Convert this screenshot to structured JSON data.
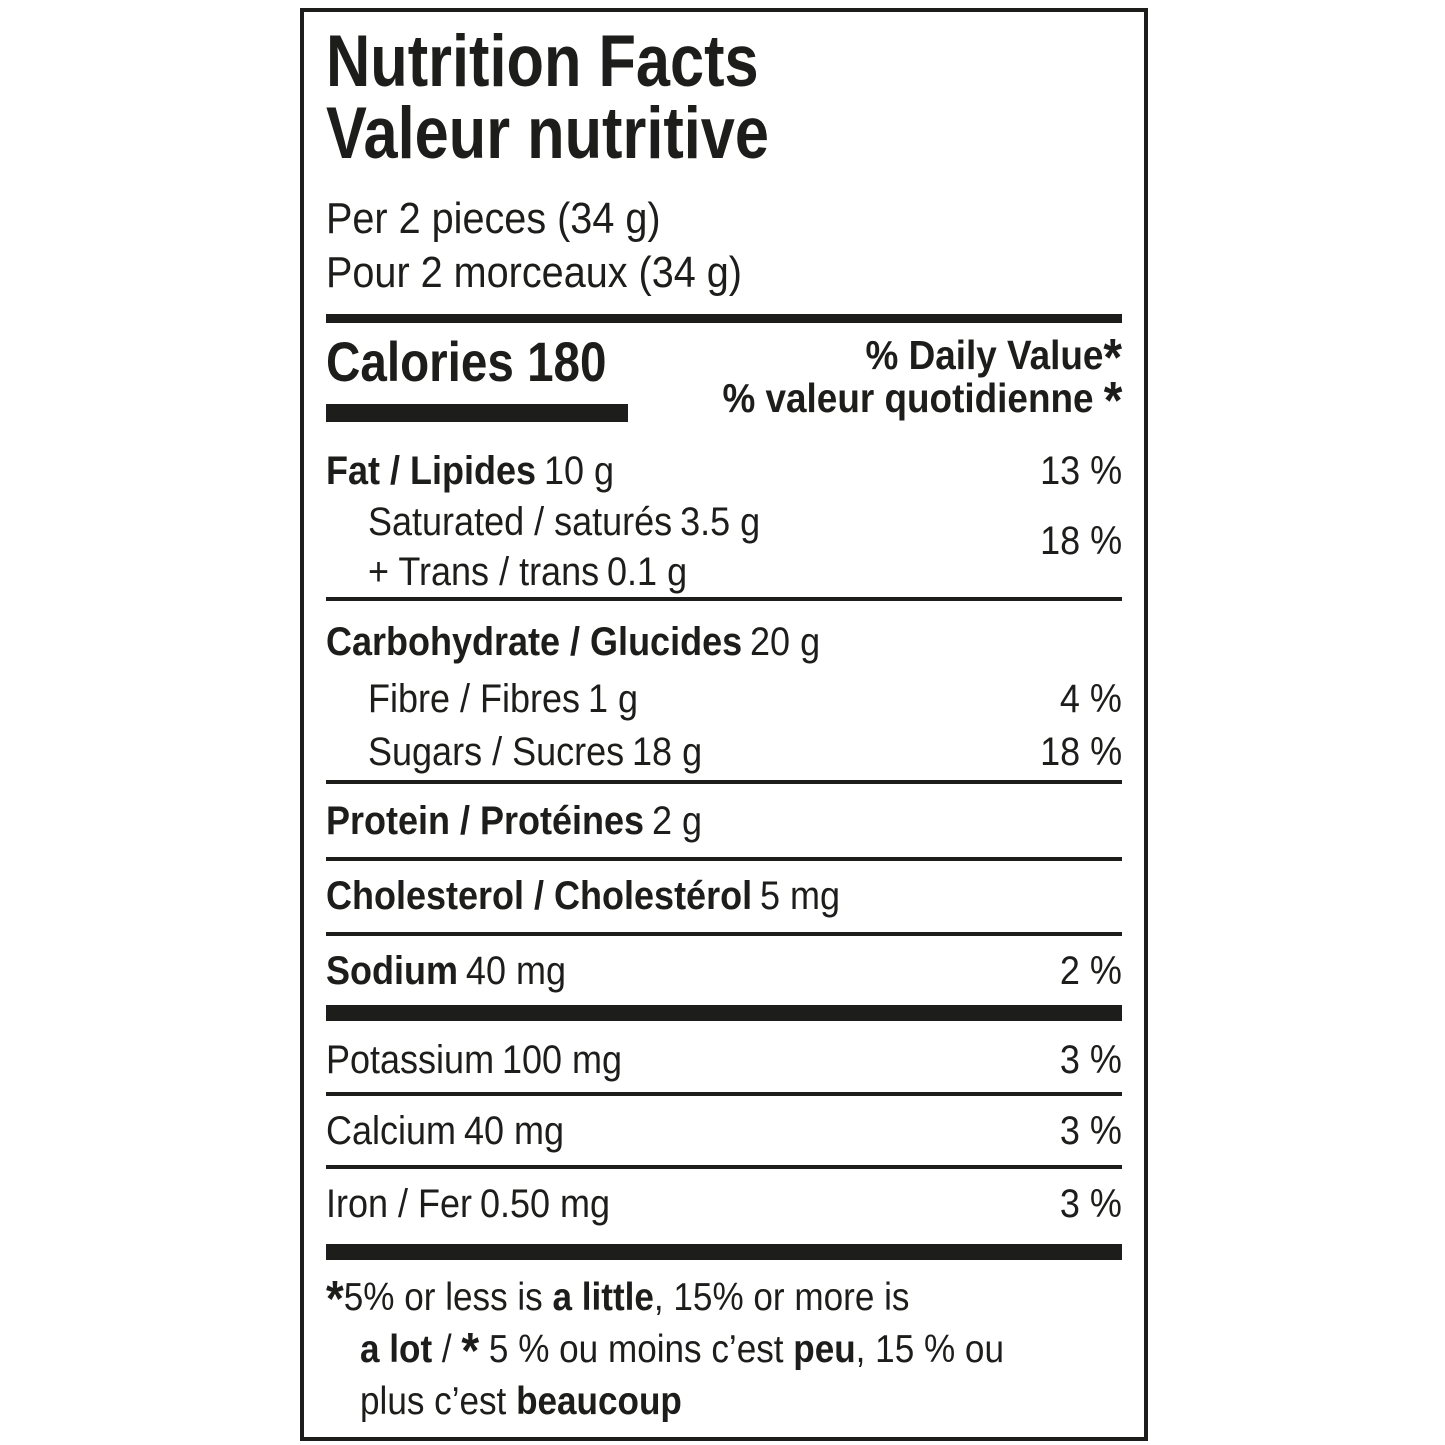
{
  "colors": {
    "text": "#1d1d1b",
    "background": "#ffffff"
  },
  "header": {
    "title_en": "Nutrition Facts",
    "title_fr": "Valeur nutritive",
    "serving_en": "Per 2 pieces (34 g)",
    "serving_fr": "Pour 2 morceaux (34 g)"
  },
  "calories": {
    "label": "Calories",
    "value": "180"
  },
  "dv_header": {
    "en": "% Daily Value",
    "fr": "% valeur quotidienne ",
    "star": "*"
  },
  "nutrients": {
    "fat": {
      "name": "Fat / Lipides",
      "amount": "10 g",
      "dv": "13 %"
    },
    "saturated": {
      "name": "Saturated / saturés",
      "amount": "3.5 g"
    },
    "trans": {
      "name": "+ Trans / trans",
      "amount": "0.1 g"
    },
    "sat_trans_dv": "18 %",
    "carbohydrate": {
      "name": "Carbohydrate / Glucides",
      "amount": "20 g"
    },
    "fibre": {
      "name": "Fibre / Fibres",
      "amount": "1 g",
      "dv": "4 %"
    },
    "sugars": {
      "name": "Sugars / Sucres",
      "amount": "18 g",
      "dv": "18 %"
    },
    "protein": {
      "name": "Protein / Protéines",
      "amount": "2 g"
    },
    "cholesterol": {
      "name": "Cholesterol / Cholestérol",
      "amount": "5 mg"
    },
    "sodium": {
      "name": "Sodium",
      "amount": "40 mg",
      "dv": "2 %"
    },
    "potassium": {
      "name": "Potassium",
      "amount": "100 mg",
      "dv": "3 %"
    },
    "calcium": {
      "name": "Calcium",
      "amount": "40 mg",
      "dv": "3 %"
    },
    "iron": {
      "name": "Iron / Fer",
      "amount": "0.50 mg",
      "dv": "3 %"
    }
  },
  "footnote": {
    "line1": [
      {
        "t": "*"
      },
      {
        "t": "5% or less is "
      },
      {
        "t": "a little"
      },
      {
        "t": ", 15% or more is"
      }
    ],
    "line2": [
      {
        "t": "a lot"
      },
      {
        "t": " / "
      },
      {
        "t": "*"
      },
      {
        "t": " 5 % ou moins c’est "
      },
      {
        "t": "peu"
      },
      {
        "t": ", 15 % ou"
      }
    ],
    "line3": [
      {
        "t": "plus c’est "
      },
      {
        "t": "beaucoup"
      }
    ]
  }
}
